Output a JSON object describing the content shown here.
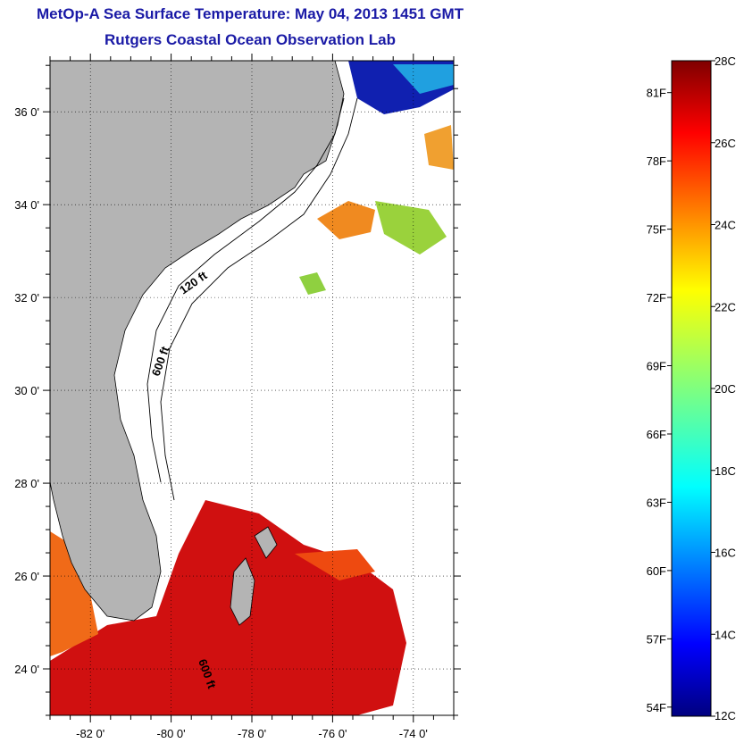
{
  "title": {
    "line1": "MetOp-A Sea Surface Temperature:  May 04, 2013 1451 GMT",
    "line2": "Rutgers Coastal Ocean Observation Lab"
  },
  "map": {
    "lat_ticks": [
      {
        "value": 36,
        "label": "36 0'"
      },
      {
        "value": 34,
        "label": "34 0'"
      },
      {
        "value": 32,
        "label": "32 0'"
      },
      {
        "value": 30,
        "label": "30 0'"
      },
      {
        "value": 28,
        "label": "28 0'"
      },
      {
        "value": 26,
        "label": "26 0'"
      },
      {
        "value": 24,
        "label": "24 0'"
      }
    ],
    "lon_ticks": [
      {
        "value": -82,
        "label": "-82 0'"
      },
      {
        "value": -80,
        "label": "-80 0'"
      },
      {
        "value": -78,
        "label": "-78 0'"
      },
      {
        "value": -76,
        "label": "-76 0'"
      },
      {
        "value": -74,
        "label": "-74 0'"
      }
    ],
    "lat_range": [
      23,
      37.1
    ],
    "lon_range": [
      -83,
      -73
    ],
    "contour_labels": [
      "120 ft",
      "600 ft",
      "600 ft"
    ],
    "land_color": "#b4b4b4"
  },
  "colorbar": {
    "celsius_labels": [
      "28C",
      "26C",
      "24C",
      "22C",
      "20C",
      "18C",
      "16C",
      "14C",
      "12C"
    ],
    "fahrenheit_labels": [
      "81F",
      "78F",
      "75F",
      "72F",
      "69F",
      "66F",
      "63F",
      "60F",
      "57F",
      "54F"
    ],
    "celsius_values": [
      28,
      26,
      24,
      22,
      20,
      18,
      16,
      14,
      12
    ],
    "fahrenheit_values": [
      81,
      78,
      75,
      72,
      69,
      66,
      63,
      60,
      57,
      54
    ],
    "range_c": [
      12,
      28
    ],
    "colormap": "jet"
  }
}
